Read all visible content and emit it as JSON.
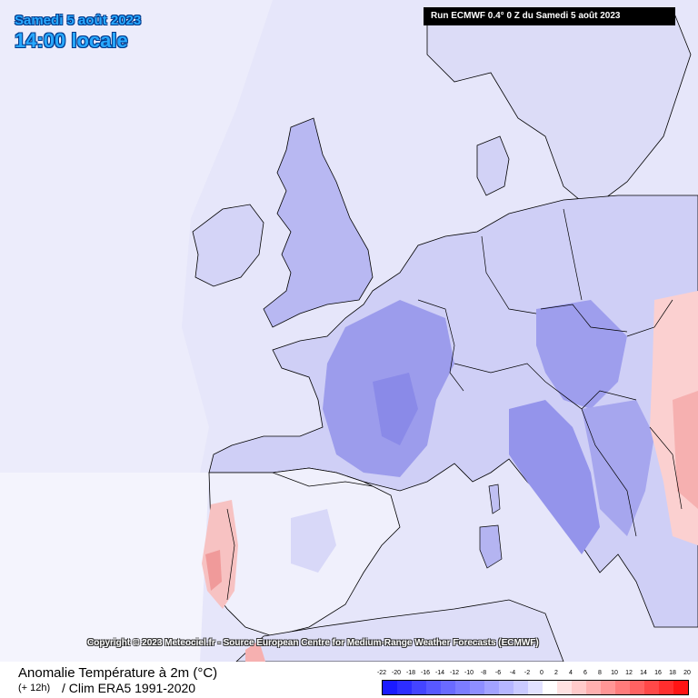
{
  "header": {
    "date": "Samedi 5 août 2023",
    "time": "14:00 locale",
    "run": "Run ECMWF 0.4° 0 Z du Samedi 5 août 2023"
  },
  "copyright": "Copyright © 2023 Meteociel.fr - Source European Centre for Medium-Range Weather Forecasts (ECMWF)",
  "footer": {
    "parameter": "Anomalie Température à 2m (°C)",
    "lead": "(+ 12h)",
    "climatology": "/ Clim ERA5 1991-2020"
  },
  "legend": {
    "labels": [
      "-22",
      "-20",
      "-18",
      "-16",
      "-14",
      "-12",
      "-10",
      "-8",
      "-6",
      "-4",
      "-2",
      "0",
      "2",
      "4",
      "6",
      "8",
      "10",
      "12",
      "14",
      "16",
      "18",
      "20"
    ],
    "colors": [
      "#1a1aff",
      "#2d2dff",
      "#4444ff",
      "#5858ff",
      "#6a6aff",
      "#7c7cff",
      "#8e8eff",
      "#a2a2ff",
      "#b6b6ff",
      "#cacaff",
      "#e2e2ff",
      "#ffffff",
      "#ffe2e2",
      "#ffcaca",
      "#ffb0b0",
      "#ff9696",
      "#ff7c7c",
      "#ff6262",
      "#ff4848",
      "#ff2e2e",
      "#ff1414"
    ]
  },
  "map_colors": {
    "sea": "#e8e8fb",
    "cool_light": "#d6d6f8",
    "cool_mid": "#b8b8f2",
    "cool_strong": "#9a9aec",
    "neutral": "#ffffff",
    "warm_light": "#fde0e0",
    "warm_mid": "#f9bcbc",
    "coast": "#000000"
  }
}
